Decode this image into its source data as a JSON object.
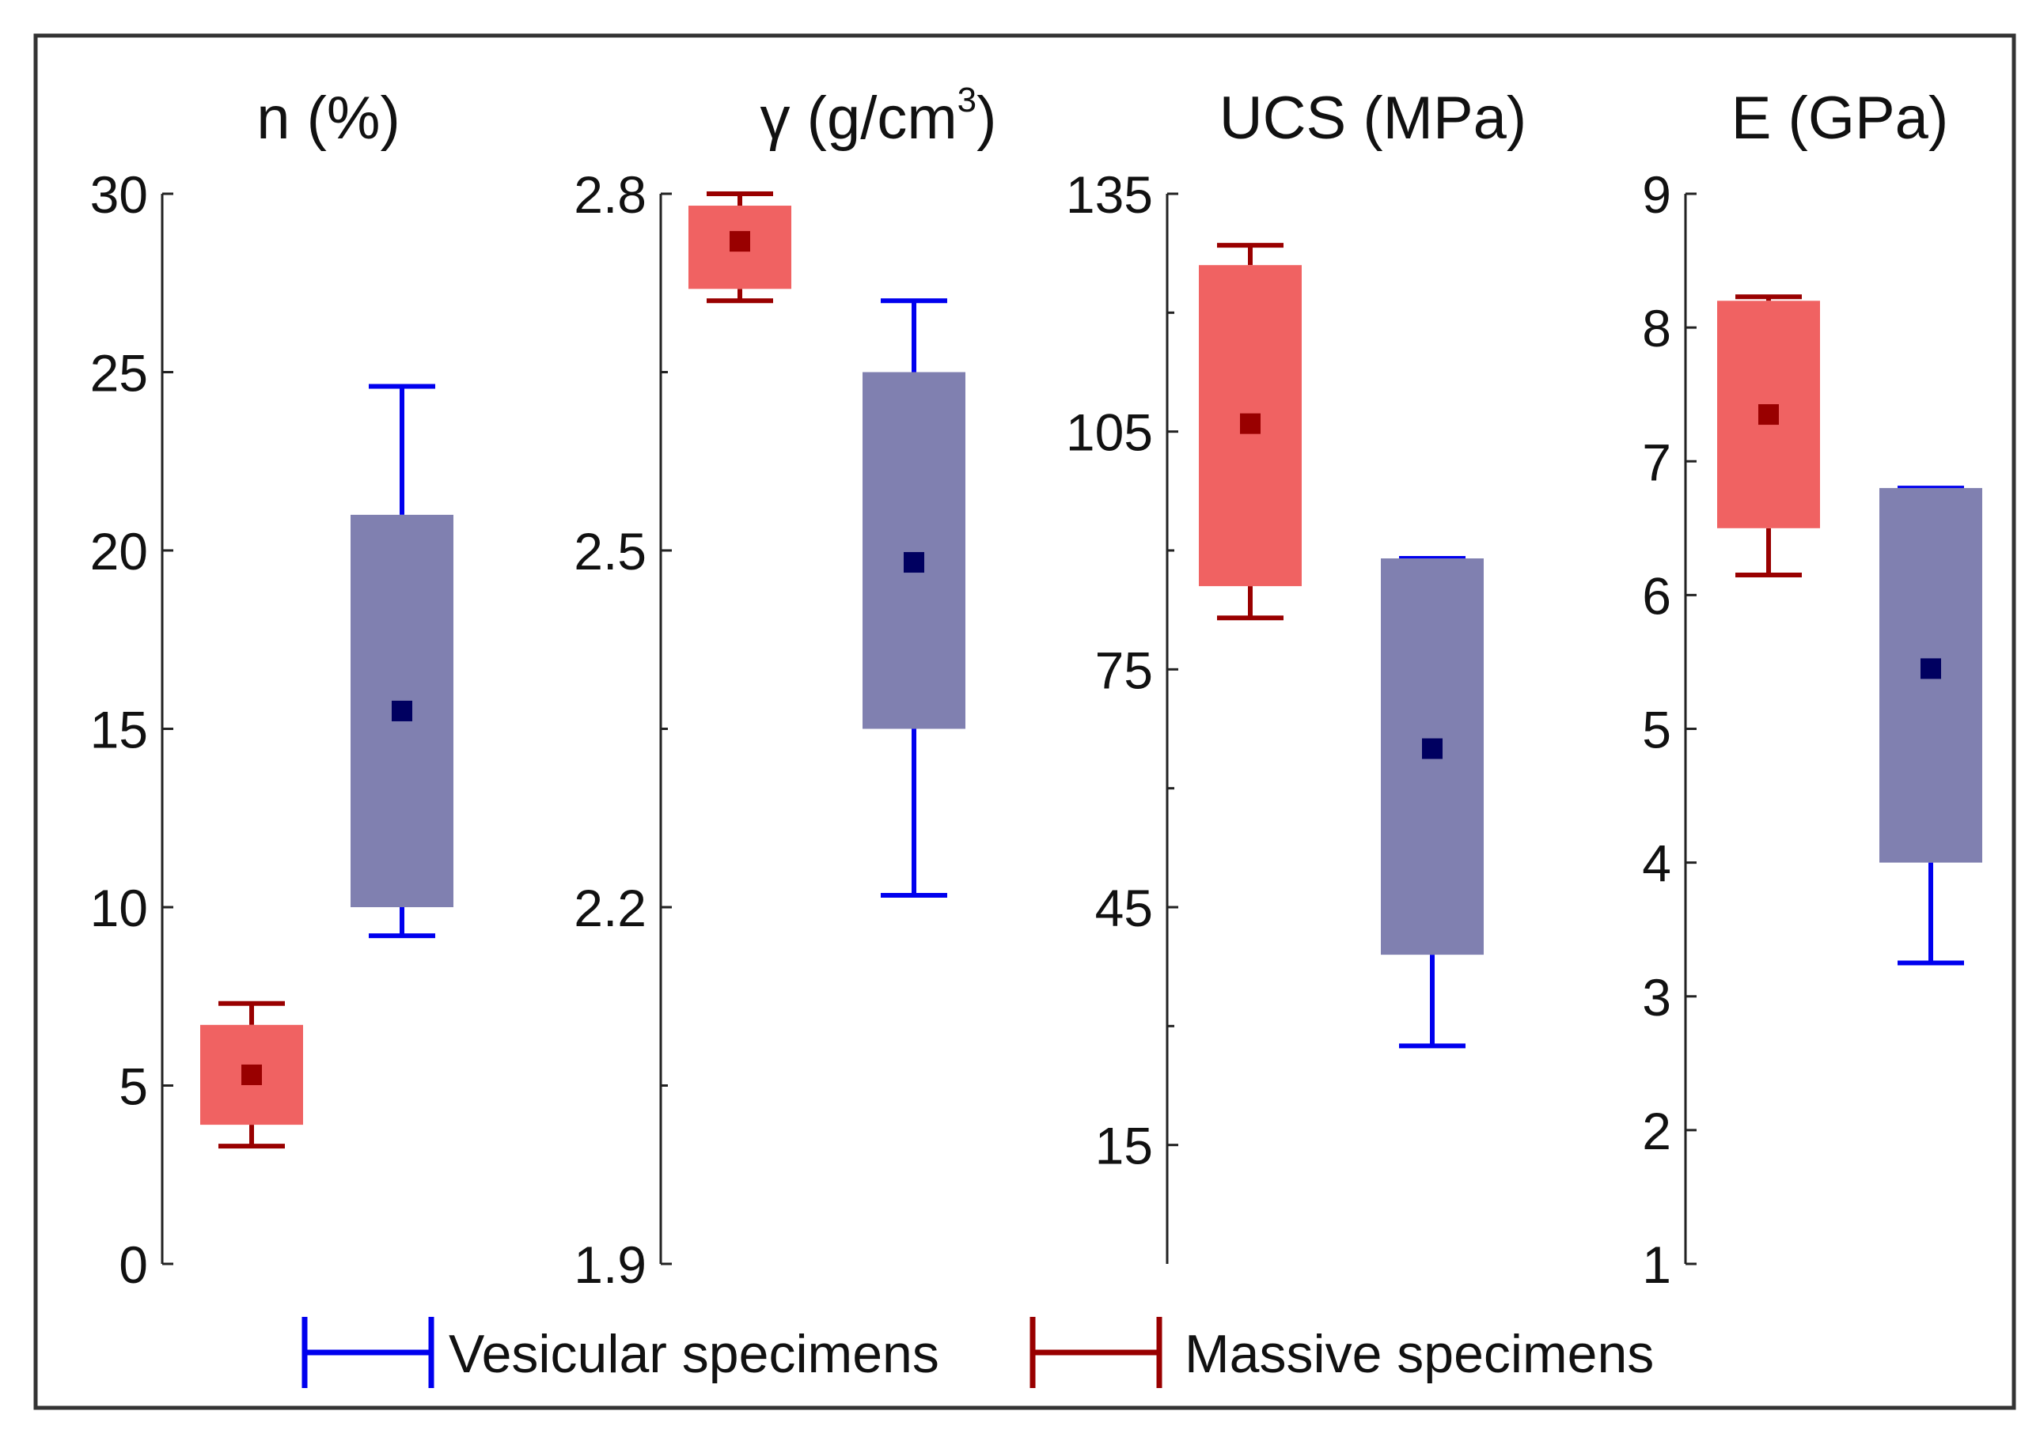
{
  "colors": {
    "massive_fill": "#f06262",
    "massive_line": "#990000",
    "vesicular_fill": "#8080b0",
    "vesicular_line": "#0000ee",
    "median_massive": "#990000",
    "median_vesicular": "#000060",
    "axis": "#222222",
    "frame": "#333333"
  },
  "legend": {
    "vesicular_label": "Vesicular specimens",
    "massive_label": "Massive specimens"
  },
  "chart_data": [
    {
      "type": "box",
      "title": "n (%)",
      "title_super": "",
      "title_tail": "",
      "ylim": [
        0,
        30
      ],
      "ticks": [
        0,
        5,
        10,
        15,
        20,
        25,
        30
      ],
      "minor_ticks": [],
      "tick_labels": [
        "0",
        "5",
        "10",
        "15",
        "20",
        "25",
        "30"
      ],
      "series": [
        {
          "name": "Massive specimens",
          "whisker_low": 3.3,
          "q1": 3.9,
          "median": 5.3,
          "q3": 6.7,
          "whisker_high": 7.3
        },
        {
          "name": "Vesicular specimens",
          "whisker_low": 9.2,
          "q1": 10.0,
          "median": 15.5,
          "q3": 21.0,
          "whisker_high": 24.6
        }
      ]
    },
    {
      "type": "box",
      "title": "γ (g/cm",
      "title_super": "3",
      "title_tail": ")",
      "ylim": [
        1.9,
        2.8
      ],
      "ticks": [
        1.9,
        2.2,
        2.5,
        2.8
      ],
      "minor_ticks": [
        2.05,
        2.35,
        2.65
      ],
      "tick_labels": [
        "1.9",
        "2.2",
        "2.5",
        "2.8"
      ],
      "series": [
        {
          "name": "Massive specimens",
          "whisker_low": 2.71,
          "q1": 2.72,
          "median": 2.76,
          "q3": 2.79,
          "whisker_high": 2.8
        },
        {
          "name": "Vesicular specimens",
          "whisker_low": 2.21,
          "q1": 2.35,
          "median": 2.49,
          "q3": 2.65,
          "whisker_high": 2.71
        }
      ]
    },
    {
      "type": "box",
      "title": "UCS (MPa)",
      "title_super": "",
      "title_tail": "",
      "ylim": [
        0,
        135
      ],
      "ticks": [
        15,
        45,
        75,
        105,
        135
      ],
      "minor_ticks": [
        30,
        60,
        90,
        120
      ],
      "tick_labels": [
        "15",
        "45",
        "75",
        "105",
        "135"
      ],
      "series": [
        {
          "name": "Massive specimens",
          "whisker_low": 81.5,
          "q1": 85.5,
          "median": 106.0,
          "q3": 126.0,
          "whisker_high": 128.5
        },
        {
          "name": "Vesicular specimens",
          "whisker_low": 27.5,
          "q1": 39.0,
          "median": 65.0,
          "q3": 89.0,
          "whisker_high": 89.0
        }
      ]
    },
    {
      "type": "box",
      "title": "E (GPa)",
      "title_super": "",
      "title_tail": "",
      "ylim": [
        1,
        9
      ],
      "ticks": [
        1,
        2,
        3,
        4,
        5,
        6,
        7,
        8,
        9
      ],
      "minor_ticks": [],
      "tick_labels": [
        "1",
        "2",
        "3",
        "4",
        "5",
        "6",
        "7",
        "8",
        "9"
      ],
      "series": [
        {
          "name": "Massive specimens",
          "whisker_low": 6.15,
          "q1": 6.5,
          "median": 7.35,
          "q3": 8.2,
          "whisker_high": 8.23
        },
        {
          "name": "Vesicular specimens",
          "whisker_low": 3.25,
          "q1": 4.0,
          "median": 5.45,
          "q3": 6.8,
          "whisker_high": 6.8
        }
      ]
    }
  ]
}
